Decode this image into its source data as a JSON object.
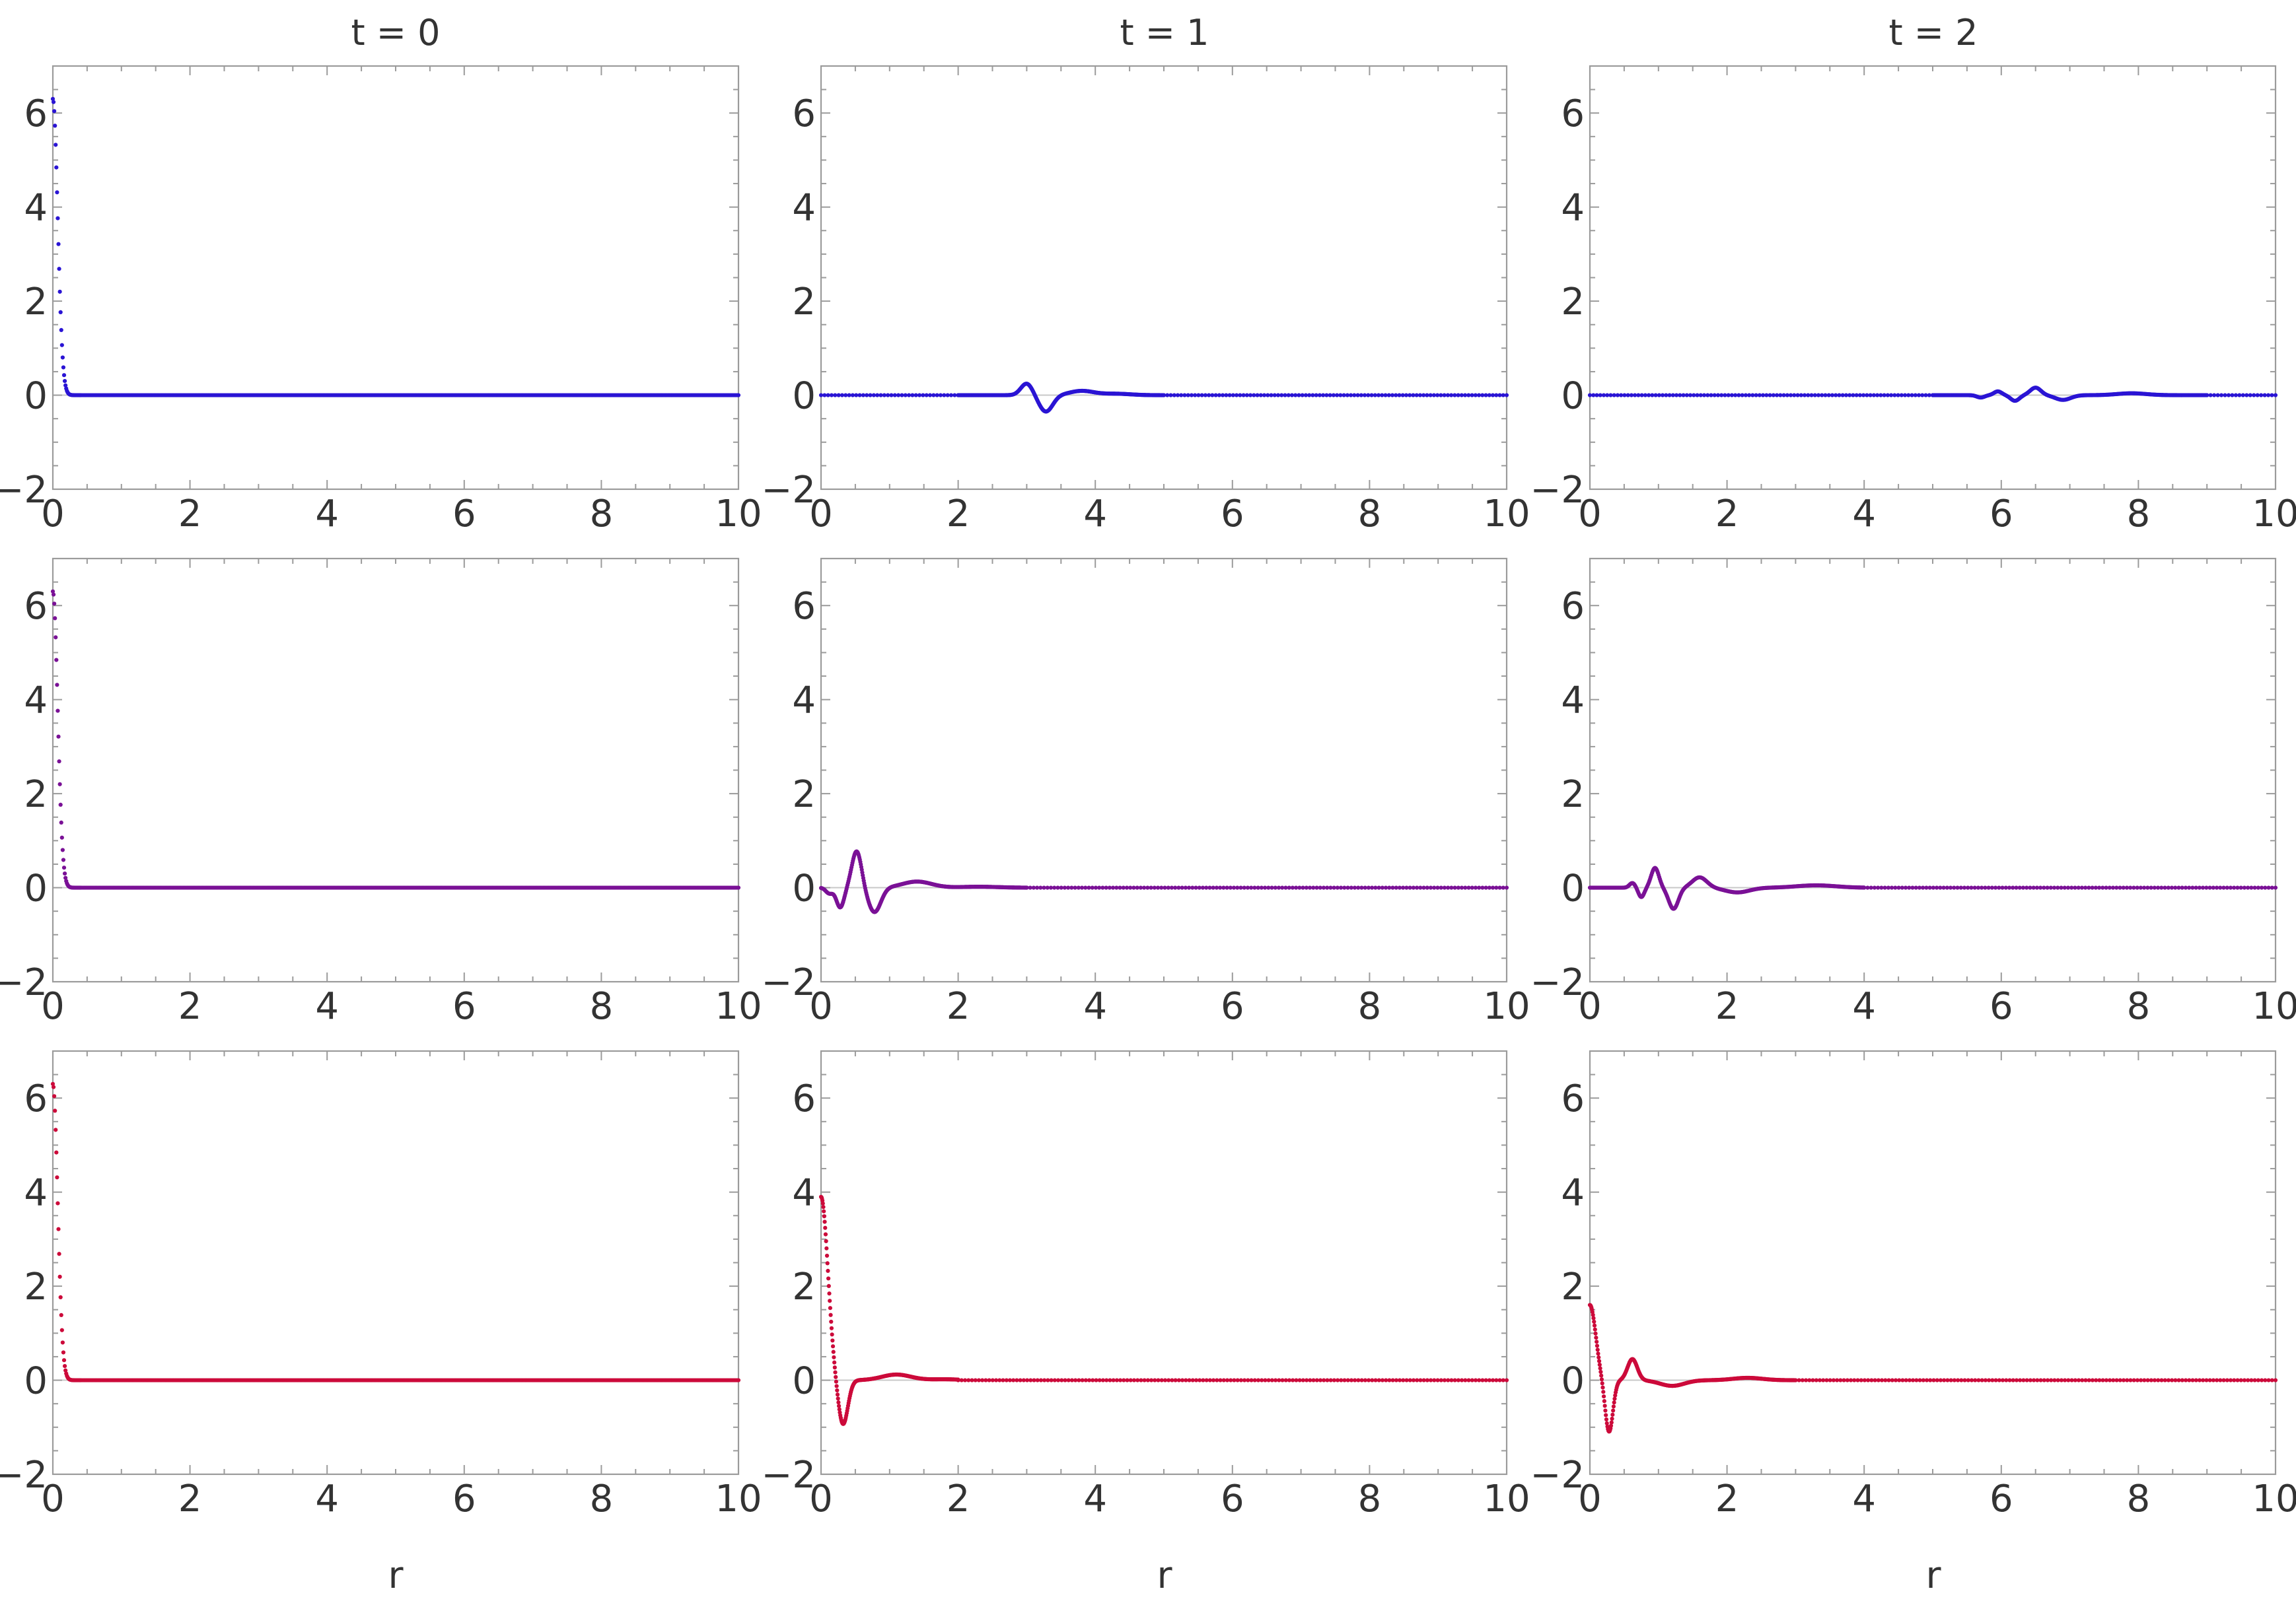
{
  "figure": {
    "column_titles": [
      "t = 0",
      "t = 1",
      "t = 2"
    ],
    "xlabel": "r",
    "row_colors": [
      "#2a14d4",
      "#7a1196",
      "#cc0a3a"
    ]
  },
  "chart_data": [
    {
      "type": "scatter",
      "row": 0,
      "col": 0,
      "title": "t = 0",
      "xlabel": "",
      "color": "#2a14d4",
      "xlim": [
        0,
        10
      ],
      "ylim": [
        -2,
        7
      ],
      "xticks": [
        0,
        2,
        4,
        6,
        8,
        10
      ],
      "yticks": [
        -2,
        0,
        2,
        4,
        6
      ],
      "grid": false,
      "legend": "none",
      "segments": [
        {
          "kind": "decay",
          "x_range": [
            0,
            0.4
          ],
          "n": 40,
          "params": {
            "amp": 6.3,
            "width": 0.1
          }
        },
        {
          "kind": "flat",
          "x_range": [
            0.4,
            10
          ],
          "n": 480
        }
      ]
    },
    {
      "type": "scatter",
      "row": 0,
      "col": 1,
      "title": "t = 1",
      "xlabel": "",
      "color": "#2a14d4",
      "xlim": [
        0,
        10
      ],
      "ylim": [
        -2,
        7
      ],
      "xticks": [
        0,
        2,
        4,
        6,
        8,
        10
      ],
      "yticks": [
        -2,
        0,
        2,
        4,
        6
      ],
      "grid": false,
      "legend": "none",
      "segments": [
        {
          "kind": "flat",
          "x_range": [
            0,
            2
          ],
          "n": 40
        },
        {
          "kind": "packet",
          "x_range": [
            2,
            5
          ],
          "n": 400,
          "params": {
            "bumps": [
              [
                3.0,
                0.25,
                0.12
              ],
              [
                3.28,
                -0.35,
                0.14
              ],
              [
                3.8,
                0.09,
                0.25
              ],
              [
                4.3,
                0.03,
                0.3
              ]
            ]
          }
        },
        {
          "kind": "flat",
          "x_range": [
            5,
            10
          ],
          "n": 100
        }
      ]
    },
    {
      "type": "scatter",
      "row": 0,
      "col": 2,
      "title": "t = 2",
      "xlabel": "",
      "color": "#2a14d4",
      "xlim": [
        0,
        10
      ],
      "ylim": [
        -2,
        7
      ],
      "xticks": [
        0,
        2,
        4,
        6,
        8,
        10
      ],
      "yticks": [
        -2,
        0,
        2,
        4,
        6
      ],
      "grid": false,
      "legend": "none",
      "segments": [
        {
          "kind": "flat",
          "x_range": [
            0,
            5
          ],
          "n": 100
        },
        {
          "kind": "packet",
          "x_range": [
            5,
            9
          ],
          "n": 400,
          "params": {
            "bumps": [
              [
                5.7,
                -0.05,
                0.08
              ],
              [
                5.95,
                0.08,
                0.08
              ],
              [
                6.2,
                -0.12,
                0.09
              ],
              [
                6.5,
                0.16,
                0.11
              ],
              [
                6.9,
                -0.1,
                0.16
              ],
              [
                7.9,
                0.04,
                0.3
              ]
            ]
          }
        },
        {
          "kind": "flat",
          "x_range": [
            9,
            10
          ],
          "n": 20
        }
      ]
    },
    {
      "type": "scatter",
      "row": 1,
      "col": 0,
      "title": "",
      "xlabel": "",
      "color": "#7a1196",
      "xlim": [
        0,
        10
      ],
      "ylim": [
        -2,
        7
      ],
      "xticks": [
        0,
        2,
        4,
        6,
        8,
        10
      ],
      "yticks": [
        -2,
        0,
        2,
        4,
        6
      ],
      "grid": false,
      "legend": "none",
      "segments": [
        {
          "kind": "decay",
          "x_range": [
            0,
            0.4
          ],
          "n": 40,
          "params": {
            "amp": 6.3,
            "width": 0.1
          }
        },
        {
          "kind": "flat",
          "x_range": [
            0.4,
            10
          ],
          "n": 480
        }
      ]
    },
    {
      "type": "scatter",
      "row": 1,
      "col": 1,
      "title": "",
      "xlabel": "",
      "color": "#7a1196",
      "xlim": [
        0,
        10
      ],
      "ylim": [
        -2,
        7
      ],
      "xticks": [
        0,
        2,
        4,
        6,
        8,
        10
      ],
      "yticks": [
        -2,
        0,
        2,
        4,
        6
      ],
      "grid": false,
      "legend": "none",
      "segments": [
        {
          "kind": "packet",
          "x_range": [
            0,
            3
          ],
          "n": 420,
          "params": {
            "bumps": [
              [
                0.12,
                -0.12,
                0.07
              ],
              [
                0.28,
                -0.42,
                0.08
              ],
              [
                0.52,
                0.78,
                0.1
              ],
              [
                0.78,
                -0.52,
                0.13
              ],
              [
                1.4,
                0.13,
                0.3
              ],
              [
                2.3,
                0.02,
                0.4
              ]
            ]
          }
        },
        {
          "kind": "flat",
          "x_range": [
            3,
            10
          ],
          "n": 140
        }
      ]
    },
    {
      "type": "scatter",
      "row": 1,
      "col": 2,
      "title": "",
      "xlabel": "",
      "color": "#7a1196",
      "xlim": [
        0,
        10
      ],
      "ylim": [
        -2,
        7
      ],
      "xticks": [
        0,
        2,
        4,
        6,
        8,
        10
      ],
      "yticks": [
        -2,
        0,
        2,
        4,
        6
      ],
      "grid": false,
      "legend": "none",
      "segments": [
        {
          "kind": "packet",
          "x_range": [
            0,
            4
          ],
          "n": 460,
          "params": {
            "bumps": [
              [
                0.62,
                0.1,
                0.06
              ],
              [
                0.75,
                -0.2,
                0.06
              ],
              [
                0.95,
                0.42,
                0.08
              ],
              [
                1.22,
                -0.45,
                0.1
              ],
              [
                1.6,
                0.22,
                0.15
              ],
              [
                2.15,
                -0.1,
                0.25
              ],
              [
                3.3,
                0.05,
                0.4
              ]
            ]
          }
        },
        {
          "kind": "flat",
          "x_range": [
            4,
            10
          ],
          "n": 120
        }
      ]
    },
    {
      "type": "scatter",
      "row": 2,
      "col": 0,
      "title": "",
      "xlabel": "r",
      "color": "#cc0a3a",
      "xlim": [
        0,
        10
      ],
      "ylim": [
        -2,
        7
      ],
      "xticks": [
        0,
        2,
        4,
        6,
        8,
        10
      ],
      "yticks": [
        -2,
        0,
        2,
        4,
        6
      ],
      "grid": false,
      "legend": "none",
      "segments": [
        {
          "kind": "decay",
          "x_range": [
            0,
            0.4
          ],
          "n": 40,
          "params": {
            "amp": 6.3,
            "width": 0.1
          }
        },
        {
          "kind": "flat",
          "x_range": [
            0.4,
            10
          ],
          "n": 480
        }
      ]
    },
    {
      "type": "scatter",
      "row": 2,
      "col": 1,
      "title": "",
      "xlabel": "r",
      "color": "#cc0a3a",
      "xlim": [
        0,
        10
      ],
      "ylim": [
        -2,
        7
      ],
      "xticks": [
        0,
        2,
        4,
        6,
        8,
        10
      ],
      "yticks": [
        -2,
        0,
        2,
        4,
        6
      ],
      "grid": false,
      "legend": "none",
      "segments": [
        {
          "kind": "packet",
          "x_range": [
            0,
            2
          ],
          "n": 300,
          "params": {
            "start": 3.9,
            "bumps": [
              [
                0.0,
                3.9,
                0.14
              ],
              [
                0.32,
                -0.95,
                0.1
              ],
              [
                1.1,
                0.12,
                0.3
              ],
              [
                1.8,
                0.02,
                0.3
              ]
            ]
          }
        },
        {
          "kind": "flat",
          "x_range": [
            2,
            10
          ],
          "n": 160
        }
      ]
    },
    {
      "type": "scatter",
      "row": 2,
      "col": 2,
      "title": "",
      "xlabel": "r",
      "color": "#cc0a3a",
      "xlim": [
        0,
        10
      ],
      "ylim": [
        -2,
        7
      ],
      "xticks": [
        0,
        2,
        4,
        6,
        8,
        10
      ],
      "yticks": [
        -2,
        0,
        2,
        4,
        6
      ],
      "grid": false,
      "legend": "none",
      "segments": [
        {
          "kind": "packet",
          "x_range": [
            0,
            3
          ],
          "n": 400,
          "params": {
            "bumps": [
              [
                0.0,
                1.6,
                0.12
              ],
              [
                0.28,
                -1.1,
                0.08
              ],
              [
                0.62,
                0.45,
                0.1
              ],
              [
                1.2,
                -0.12,
                0.25
              ],
              [
                2.3,
                0.05,
                0.3
              ]
            ]
          }
        },
        {
          "kind": "flat",
          "x_range": [
            3,
            10
          ],
          "n": 140
        }
      ]
    }
  ]
}
